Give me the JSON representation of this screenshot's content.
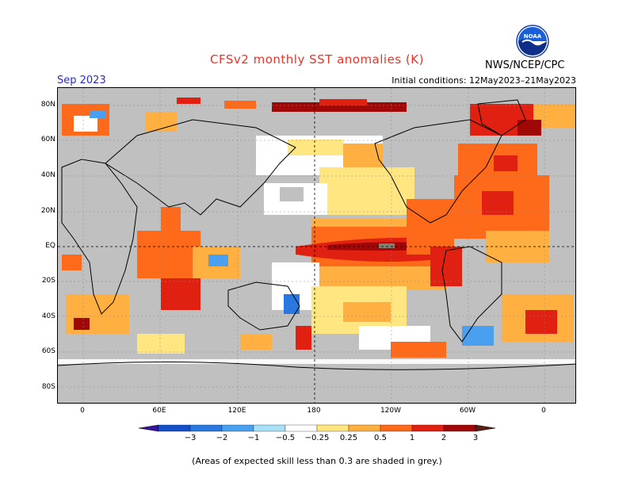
{
  "title": "CFSv2 monthly SST anomalies (K)",
  "agency": "NWS/NCEP/CPC",
  "logo_text": "NOAA",
  "valid_month": "Sep 2023",
  "initial_conditions": "Initial conditions: 12May2023–21May2023",
  "lat_labels": [
    "80N",
    "60N",
    "40N",
    "20N",
    "EQ",
    "20S",
    "40S",
    "60S",
    "80S"
  ],
  "lon_labels": [
    "0",
    "60E",
    "120E",
    "180",
    "120W",
    "60W",
    "0"
  ],
  "colorbar": {
    "labels": [
      "−3",
      "−2",
      "−1",
      "−0.5",
      "−0.25",
      "0.25",
      "0.5",
      "1",
      "2",
      "3"
    ],
    "colors": [
      "#3a10a0",
      "#1450c8",
      "#2878e0",
      "#4aa0f0",
      "#a8e0f8",
      "#ffffff",
      "#ffe680",
      "#ffb040",
      "#ff6a1a",
      "#e02010",
      "#a00808",
      "#5a2018"
    ]
  },
  "footnote": "(Areas of expected skill less than 0.3 are shaded in grey.)"
}
